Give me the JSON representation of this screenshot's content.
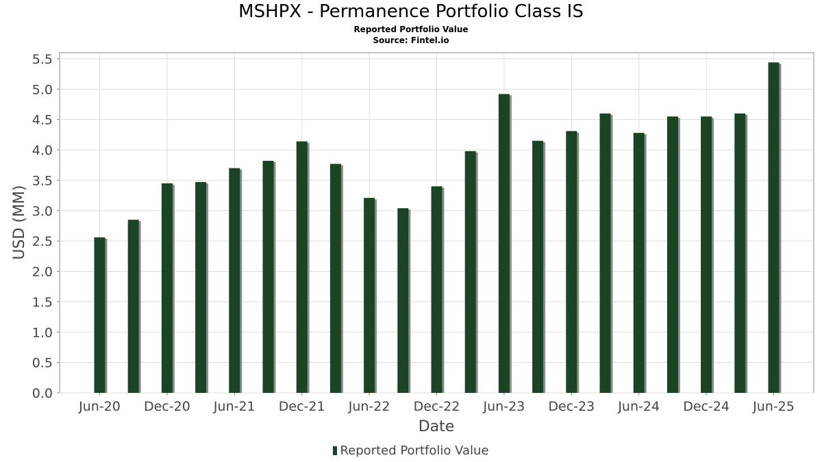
{
  "title": "MSHPX - Permanence Portfolio Class IS",
  "subtitle": "Reported Portfolio Value",
  "source": "Source: Fintel.io",
  "colors": {
    "bar": "#1a4424",
    "shadow": "#8c8c8c",
    "grid": "#dcdcdc",
    "axis": "#888888"
  },
  "chart_data": {
    "type": "bar",
    "title": "MSHPX - Permanence Portfolio Class IS",
    "subtitle": "Reported Portfolio Value",
    "xlabel": "Date",
    "ylabel": "USD (MM)",
    "ylim": [
      0,
      5.6
    ],
    "yticks": [
      "0.0",
      "0.5",
      "1.0",
      "1.5",
      "2.0",
      "2.5",
      "3.0",
      "3.5",
      "4.0",
      "4.5",
      "5.0",
      "5.5"
    ],
    "xtick_labels": [
      "Jun-20",
      "Dec-20",
      "Jun-21",
      "Dec-21",
      "Jun-22",
      "Dec-22",
      "Jun-23",
      "Dec-23",
      "Jun-24",
      "Dec-24",
      "Jun-25"
    ],
    "grid": true,
    "legend": "bottom",
    "series": [
      {
        "name": "Reported Portfolio Value",
        "values": [
          2.56,
          2.85,
          3.45,
          3.47,
          3.7,
          3.82,
          4.14,
          3.77,
          3.21,
          3.04,
          3.4,
          3.98,
          4.92,
          4.15,
          4.31,
          4.6,
          4.28,
          4.55,
          4.55,
          4.6,
          5.44
        ]
      }
    ]
  }
}
